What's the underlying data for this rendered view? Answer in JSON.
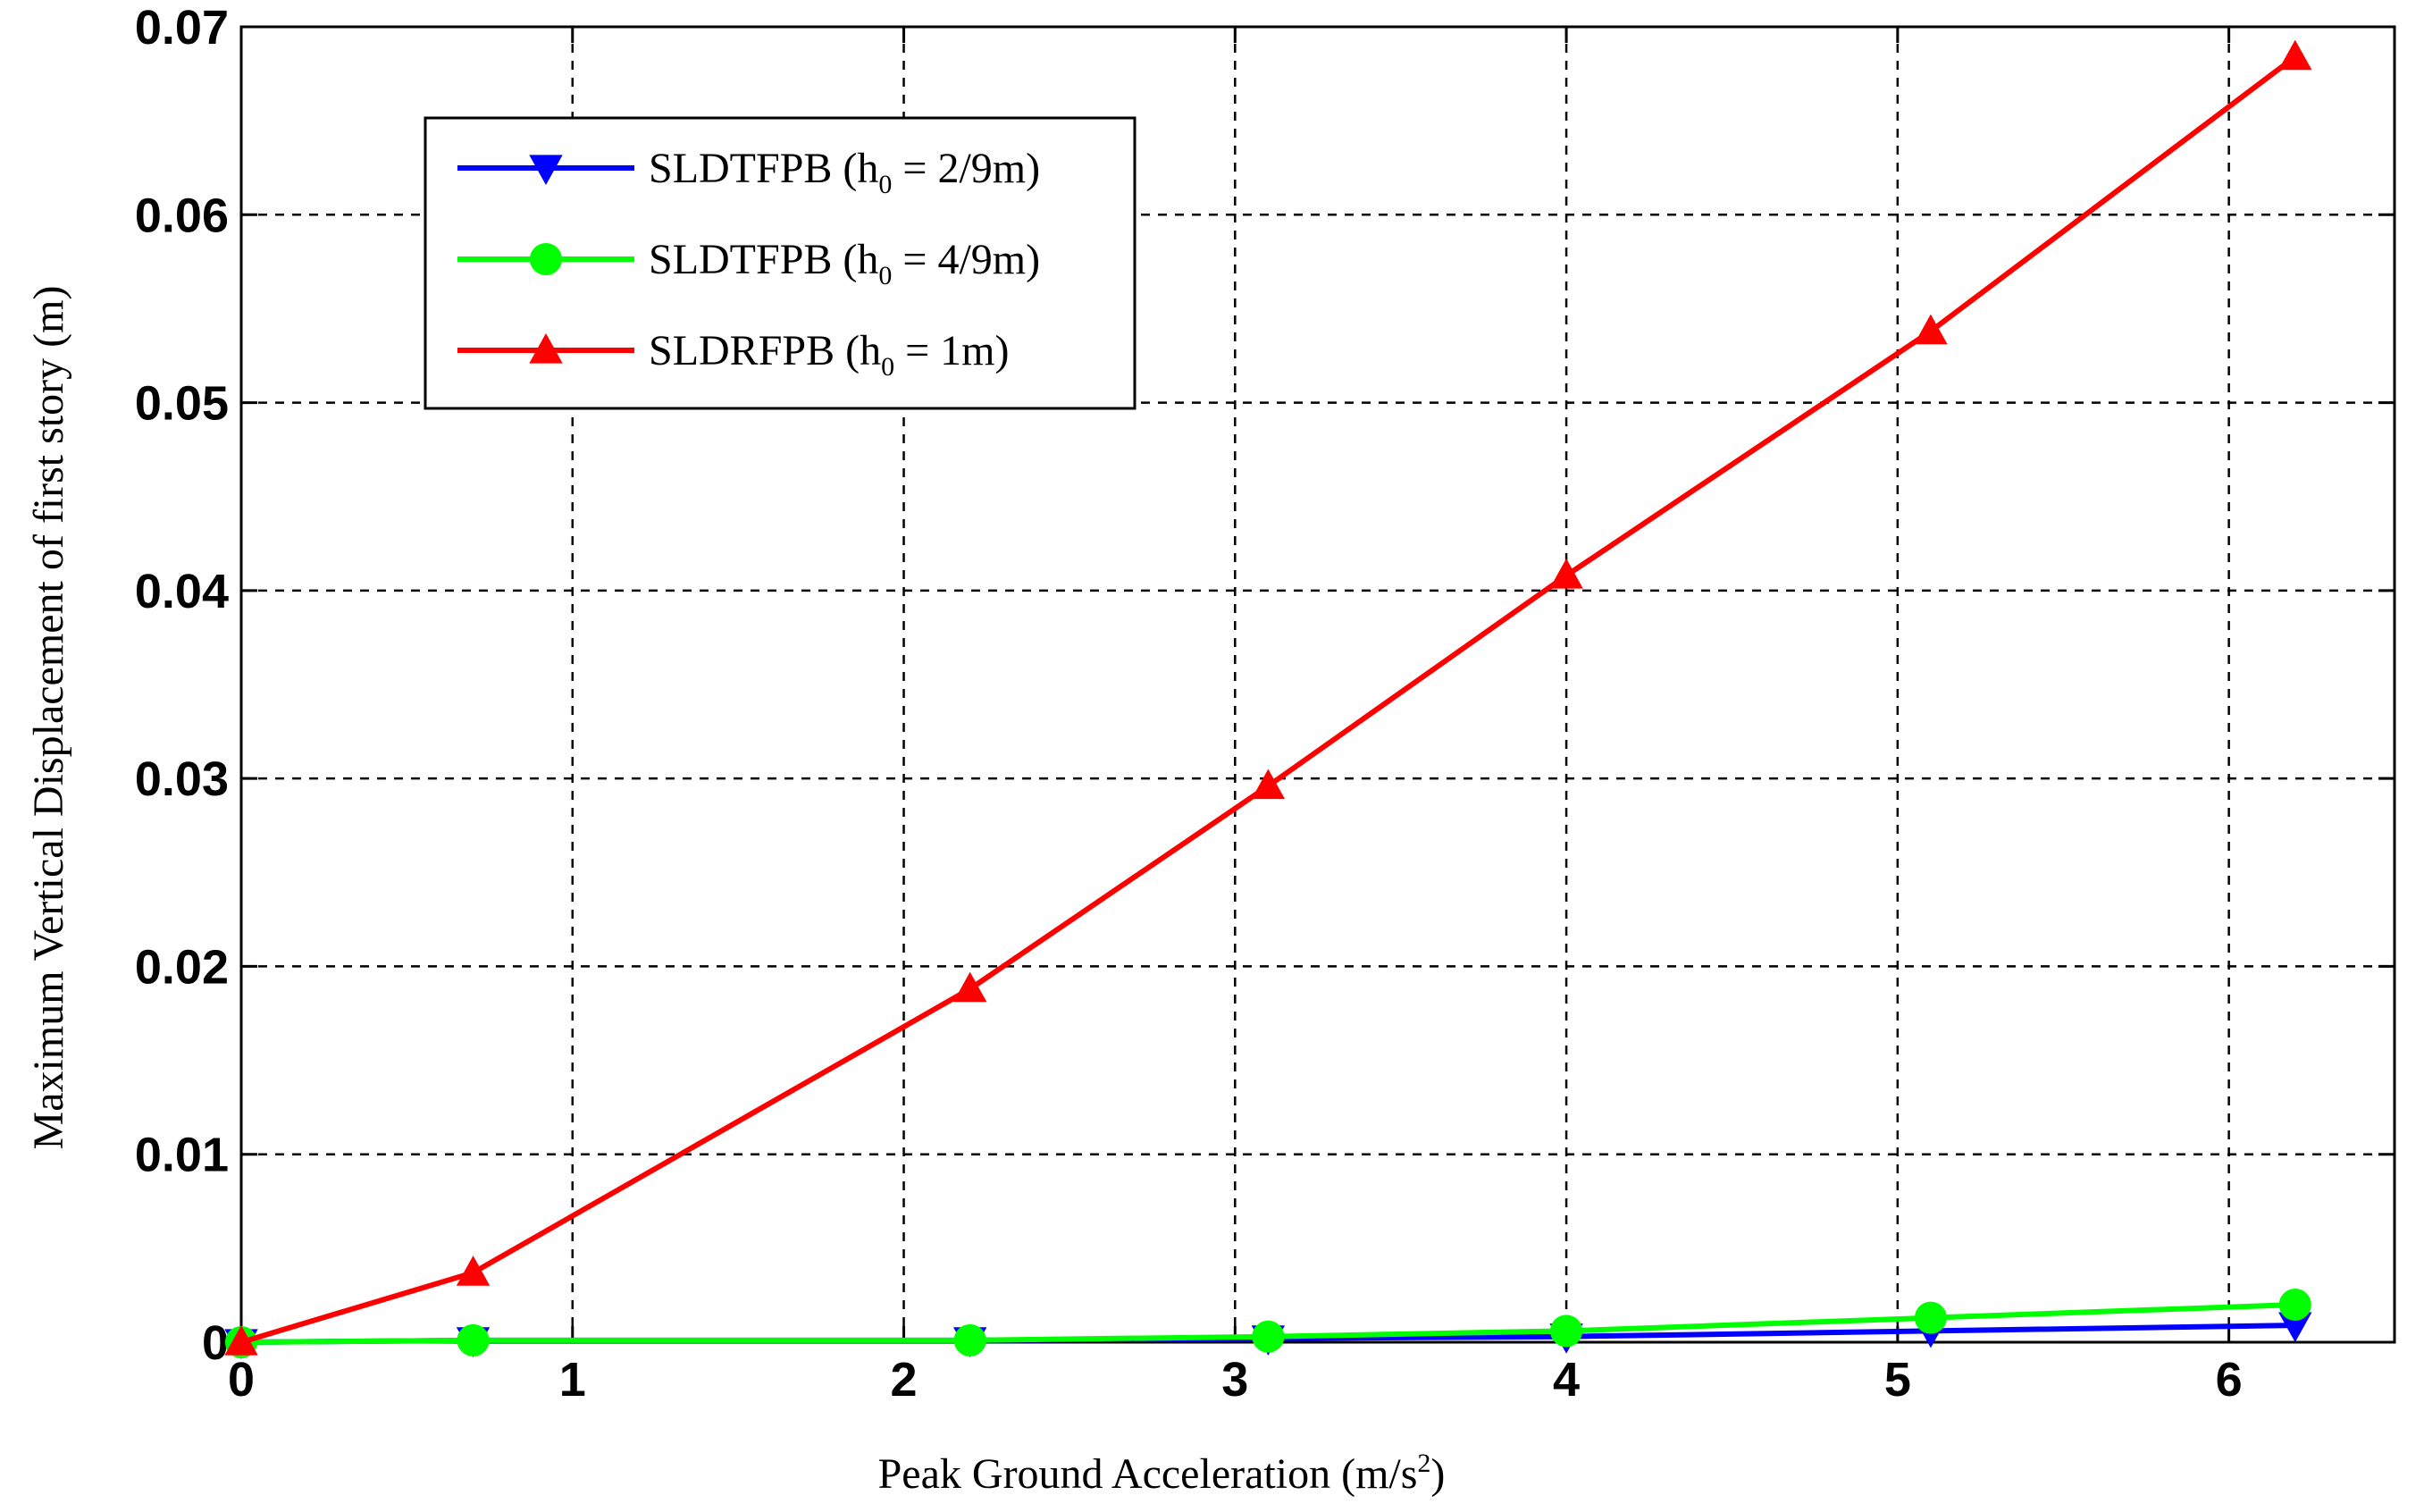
{
  "chart_data": {
    "type": "line",
    "xlabel": "Peak Ground Acceleration (m/s",
    "xlabel_sup": "2",
    "xlabel_end": ")",
    "ylabel": "Maximum Vertical Displacement of first story (m)",
    "xlim": [
      0,
      6.5
    ],
    "ylim": [
      0,
      0.07
    ],
    "xticks": [
      0,
      1,
      2,
      3,
      4,
      5,
      6
    ],
    "yticks": [
      0,
      0.01,
      0.02,
      0.03,
      0.04,
      0.05,
      0.06,
      0.07
    ],
    "xtick_labels": [
      "0",
      "1",
      "2",
      "3",
      "4",
      "5",
      "6"
    ],
    "ytick_labels": [
      "0",
      "0.01",
      "0.02",
      "0.03",
      "0.04",
      "0.05",
      "0.06",
      "0.07"
    ],
    "grid": true,
    "legend_position": "top-left",
    "x": [
      0,
      0.7,
      2.2,
      3.1,
      4.0,
      5.1,
      6.2
    ],
    "series": [
      {
        "label_main": "SLDTFPB (h",
        "label_sub": "0",
        "label_rest": " = 2/9m)",
        "color": "#0000ff",
        "marker": "triangle-down",
        "values": [
          0,
          0.0001,
          0.0001,
          0.0002,
          0.0003,
          0.0006,
          0.0009
        ]
      },
      {
        "label_main": "SLDTFPB (h",
        "label_sub": "0",
        "label_rest": " = 4/9m)",
        "color": "#00ff00",
        "marker": "circle",
        "values": [
          0,
          0.0001,
          0.0001,
          0.0003,
          0.0006,
          0.0013,
          0.002
        ]
      },
      {
        "label_main": "SLDRFPB (h",
        "label_sub": "0",
        "label_rest": " = 1m)",
        "color": "#ff0000",
        "marker": "triangle-up",
        "values": [
          0,
          0.0037,
          0.0188,
          0.0296,
          0.0408,
          0.0538,
          0.0684
        ]
      }
    ]
  }
}
